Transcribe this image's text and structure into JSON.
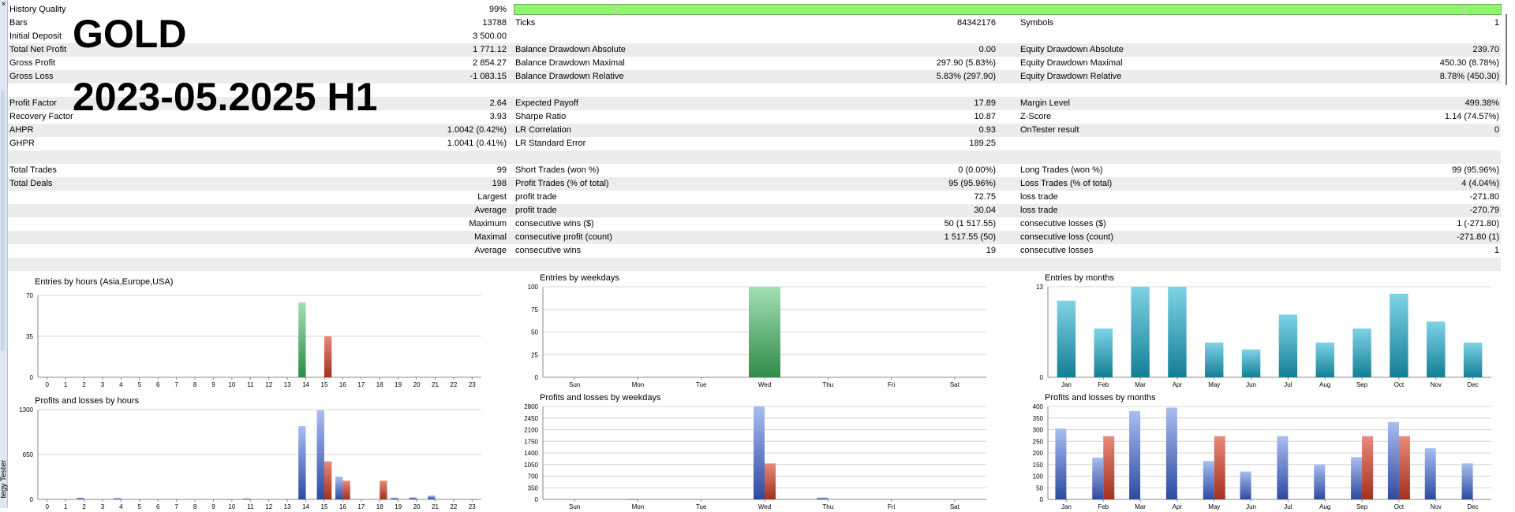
{
  "overlay": {
    "line1": "GOLD",
    "line2": "2023-05.2025 H1"
  },
  "side_tab": {
    "close": "×",
    "label": "tegy Tester"
  },
  "history_quality": {
    "label": "History Quality",
    "value": "99%",
    "fraction": 0.99
  },
  "rows": [
    {
      "alt": false,
      "c": [
        [
          "Bars",
          "13788"
        ],
        [
          "Ticks",
          "84342176"
        ],
        [
          "Symbols",
          "1"
        ]
      ]
    },
    {
      "alt": false,
      "c": [
        [
          "Initial Deposit",
          "3 500.00"
        ],
        [
          "",
          ""
        ],
        [
          "",
          ""
        ]
      ]
    },
    {
      "alt": true,
      "c": [
        [
          "Total Net Profit",
          "1 771.12"
        ],
        [
          "Balance Drawdown Absolute",
          "0.00"
        ],
        [
          "Equity Drawdown Absolute",
          "239.70"
        ]
      ]
    },
    {
      "alt": false,
      "c": [
        [
          "Gross Profit",
          "2 854.27"
        ],
        [
          "Balance Drawdown Maximal",
          "297.90 (5.83%)"
        ],
        [
          "Equity Drawdown Maximal",
          "450.30 (8.78%)"
        ]
      ]
    },
    {
      "alt": true,
      "c": [
        [
          "Gross Loss",
          "-1 083.15"
        ],
        [
          "Balance Drawdown Relative",
          "5.83% (297.90)"
        ],
        [
          "Equity Drawdown Relative",
          "8.78% (450.30)"
        ]
      ]
    },
    {
      "alt": false,
      "c": [
        [
          "",
          ""
        ],
        [
          "",
          ""
        ],
        [
          "",
          ""
        ]
      ]
    },
    {
      "alt": true,
      "c": [
        [
          "Profit Factor",
          "2.64"
        ],
        [
          "Expected Payoff",
          "17.89"
        ],
        [
          "Margin Level",
          "499.38%"
        ]
      ]
    },
    {
      "alt": false,
      "c": [
        [
          "Recovery Factor",
          "3.93"
        ],
        [
          "Sharpe Ratio",
          "10.87"
        ],
        [
          "Z-Score",
          "1.14 (74.57%)"
        ]
      ]
    },
    {
      "alt": true,
      "c": [
        [
          "AHPR",
          "1.0042 (0.42%)"
        ],
        [
          "LR Correlation",
          "0.93"
        ],
        [
          "OnTester result",
          "0"
        ]
      ]
    },
    {
      "alt": false,
      "c": [
        [
          "GHPR",
          "1.0041 (0.41%)"
        ],
        [
          "LR Standard Error",
          "189.25"
        ],
        [
          "",
          ""
        ]
      ]
    },
    {
      "alt": true,
      "c": [
        [
          "",
          ""
        ],
        [
          "",
          ""
        ],
        [
          "",
          ""
        ]
      ]
    },
    {
      "alt": false,
      "c": [
        [
          "Total Trades",
          "99"
        ],
        [
          "Short Trades (won %)",
          "0 (0.00%)"
        ],
        [
          "Long Trades (won %)",
          "99 (95.96%)"
        ]
      ]
    },
    {
      "alt": true,
      "c": [
        [
          "Total Deals",
          "198"
        ],
        [
          "Profit Trades (% of total)",
          "95 (95.96%)"
        ],
        [
          "Loss Trades (% of total)",
          "4 (4.04%)"
        ]
      ]
    },
    {
      "alt": false,
      "c": [
        [
          "",
          "Largest"
        ],
        [
          "profit trade",
          "72.75"
        ],
        [
          "loss trade",
          "-271.80"
        ]
      ]
    },
    {
      "alt": true,
      "c": [
        [
          "",
          "Average"
        ],
        [
          "profit trade",
          "30.04"
        ],
        [
          "loss trade",
          "-270.79"
        ]
      ]
    },
    {
      "alt": false,
      "c": [
        [
          "",
          "Maximum"
        ],
        [
          "consecutive wins ($)",
          "50 (1 517.55)"
        ],
        [
          "consecutive losses ($)",
          "1 (-271.80)"
        ]
      ]
    },
    {
      "alt": true,
      "c": [
        [
          "",
          "Maximal"
        ],
        [
          "consecutive profit (count)",
          "1 517.55 (50)"
        ],
        [
          "consecutive loss (count)",
          "-271.80 (1)"
        ]
      ]
    },
    {
      "alt": false,
      "c": [
        [
          "",
          "Average"
        ],
        [
          "consecutive wins",
          "19"
        ],
        [
          "consecutive losses",
          "1"
        ]
      ]
    },
    {
      "alt": true,
      "c": [
        [
          "",
          ""
        ],
        [
          "",
          ""
        ],
        [
          "",
          ""
        ]
      ]
    }
  ],
  "colors": {
    "green": "#2e8b47",
    "green_light": "#a3dfb4",
    "red": "#a4301d",
    "red_light": "#e8897a",
    "blue": "#2c4aa2",
    "blue_light": "#a9bdf0",
    "teal": "#137f95",
    "teal_light": "#7fd3e6"
  },
  "chart_data": [
    {
      "type": "bar",
      "title": "Entries by hours (Asia,Europe,USA)",
      "categories": [
        "0",
        "1",
        "2",
        "3",
        "4",
        "5",
        "6",
        "7",
        "8",
        "9",
        "10",
        "11",
        "12",
        "13",
        "14",
        "15",
        "16",
        "17",
        "18",
        "19",
        "20",
        "21",
        "22",
        "23"
      ],
      "yticks": [
        "0",
        "35",
        "70"
      ],
      "ylim": [
        0,
        70
      ],
      "series": [
        {
          "color": "green",
          "values": [
            0,
            0,
            0,
            0,
            0,
            0,
            0,
            0,
            0,
            0,
            0,
            0,
            0,
            0,
            64,
            0,
            0,
            0,
            0,
            0,
            0,
            0,
            0,
            0
          ]
        },
        {
          "color": "red",
          "values": [
            0,
            0,
            0,
            0,
            0,
            0,
            0,
            0,
            0,
            0,
            0,
            0,
            0,
            0,
            0,
            35,
            0,
            0,
            0,
            0,
            0,
            0,
            0,
            0
          ]
        }
      ]
    },
    {
      "type": "bar",
      "title": "Entries by weekdays",
      "categories": [
        "Sun",
        "Mon",
        "Tue",
        "Wed",
        "Thu",
        "Fri",
        "Sat"
      ],
      "yticks": [
        "0",
        "25",
        "50",
        "75",
        "100"
      ],
      "ylim": [
        0,
        100
      ],
      "series": [
        {
          "color": "green",
          "values": [
            0,
            0,
            0,
            100,
            0,
            0,
            0
          ]
        }
      ]
    },
    {
      "type": "bar",
      "title": "Entries by months",
      "categories": [
        "Jan",
        "Feb",
        "Mar",
        "Apr",
        "May",
        "Jun",
        "Jul",
        "Aug",
        "Sep",
        "Oct",
        "Nov",
        "Dec"
      ],
      "yticks": [
        "0",
        "13"
      ],
      "ylim": [
        0,
        13
      ],
      "series": [
        {
          "color": "teal",
          "values": [
            11,
            7,
            13,
            13,
            5,
            4,
            9,
            5,
            7,
            12,
            8,
            5
          ]
        }
      ]
    },
    {
      "type": "bar",
      "title": "Profits and losses by hours",
      "categories": [
        "0",
        "1",
        "2",
        "3",
        "4",
        "5",
        "6",
        "7",
        "8",
        "9",
        "10",
        "11",
        "12",
        "13",
        "14",
        "15",
        "16",
        "17",
        "18",
        "19",
        "20",
        "21",
        "22",
        "23"
      ],
      "yticks": [
        "0",
        "650",
        "1300"
      ],
      "ylim": [
        0,
        1300
      ],
      "series": [
        {
          "color": "blue",
          "values": [
            0,
            0,
            25,
            0,
            20,
            0,
            0,
            0,
            0,
            0,
            0,
            15,
            0,
            0,
            1060,
            1290,
            330,
            0,
            0,
            25,
            30,
            55,
            0,
            0
          ]
        },
        {
          "color": "red",
          "values": [
            0,
            0,
            0,
            0,
            0,
            0,
            0,
            0,
            0,
            0,
            0,
            0,
            0,
            0,
            0,
            550,
            270,
            0,
            270,
            0,
            0,
            0,
            0,
            0
          ]
        }
      ]
    },
    {
      "type": "bar",
      "title": "Profits and losses by weekdays",
      "categories": [
        "Sun",
        "Mon",
        "Tue",
        "Wed",
        "Thu",
        "Fri",
        "Sat"
      ],
      "yticks": [
        "0",
        "350",
        "700",
        "1050",
        "1400",
        "1750",
        "2100",
        "2450",
        "2800"
      ],
      "ylim": [
        0,
        2800
      ],
      "series": [
        {
          "color": "blue",
          "values": [
            0,
            20,
            0,
            2800,
            55,
            0,
            0
          ]
        },
        {
          "color": "red",
          "values": [
            0,
            0,
            0,
            1083,
            0,
            0,
            0
          ]
        }
      ]
    },
    {
      "type": "bar",
      "title": "Profits and losses by months",
      "categories": [
        "Jan",
        "Feb",
        "Mar",
        "Apr",
        "May",
        "Jun",
        "Jul",
        "Aug",
        "Sep",
        "Oct",
        "Nov",
        "Dec"
      ],
      "yticks": [
        "0",
        "50",
        "100",
        "150",
        "200",
        "250",
        "300",
        "350",
        "400"
      ],
      "ylim": [
        0,
        400
      ],
      "series": [
        {
          "color": "blue",
          "values": [
            305,
            180,
            380,
            395,
            165,
            120,
            272,
            150,
            182,
            333,
            220,
            155
          ]
        },
        {
          "color": "red",
          "values": [
            0,
            272,
            0,
            0,
            272,
            0,
            0,
            0,
            272,
            272,
            0,
            0
          ]
        }
      ]
    }
  ]
}
